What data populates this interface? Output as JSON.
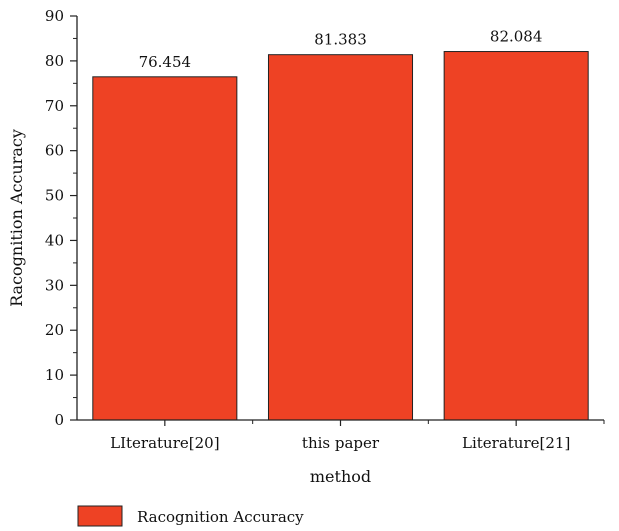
{
  "chart_data": {
    "type": "bar",
    "categories": [
      "LIterature[20]",
      "this paper",
      "Literature[21]"
    ],
    "series": [
      {
        "name": "Racognition Accuracy",
        "values": [
          76.454,
          81.383,
          82.084
        ],
        "color": "#ee4224"
      }
    ],
    "data_labels": [
      "76.454",
      "81.383",
      "82.084"
    ],
    "xlabel": "method",
    "ylabel": "Racognition Accuracy",
    "ylim": [
      0,
      90
    ],
    "yticks": [
      0,
      10,
      20,
      30,
      40,
      50,
      60,
      70,
      80,
      90
    ],
    "grid": false,
    "legend_position": "bottom-left"
  }
}
